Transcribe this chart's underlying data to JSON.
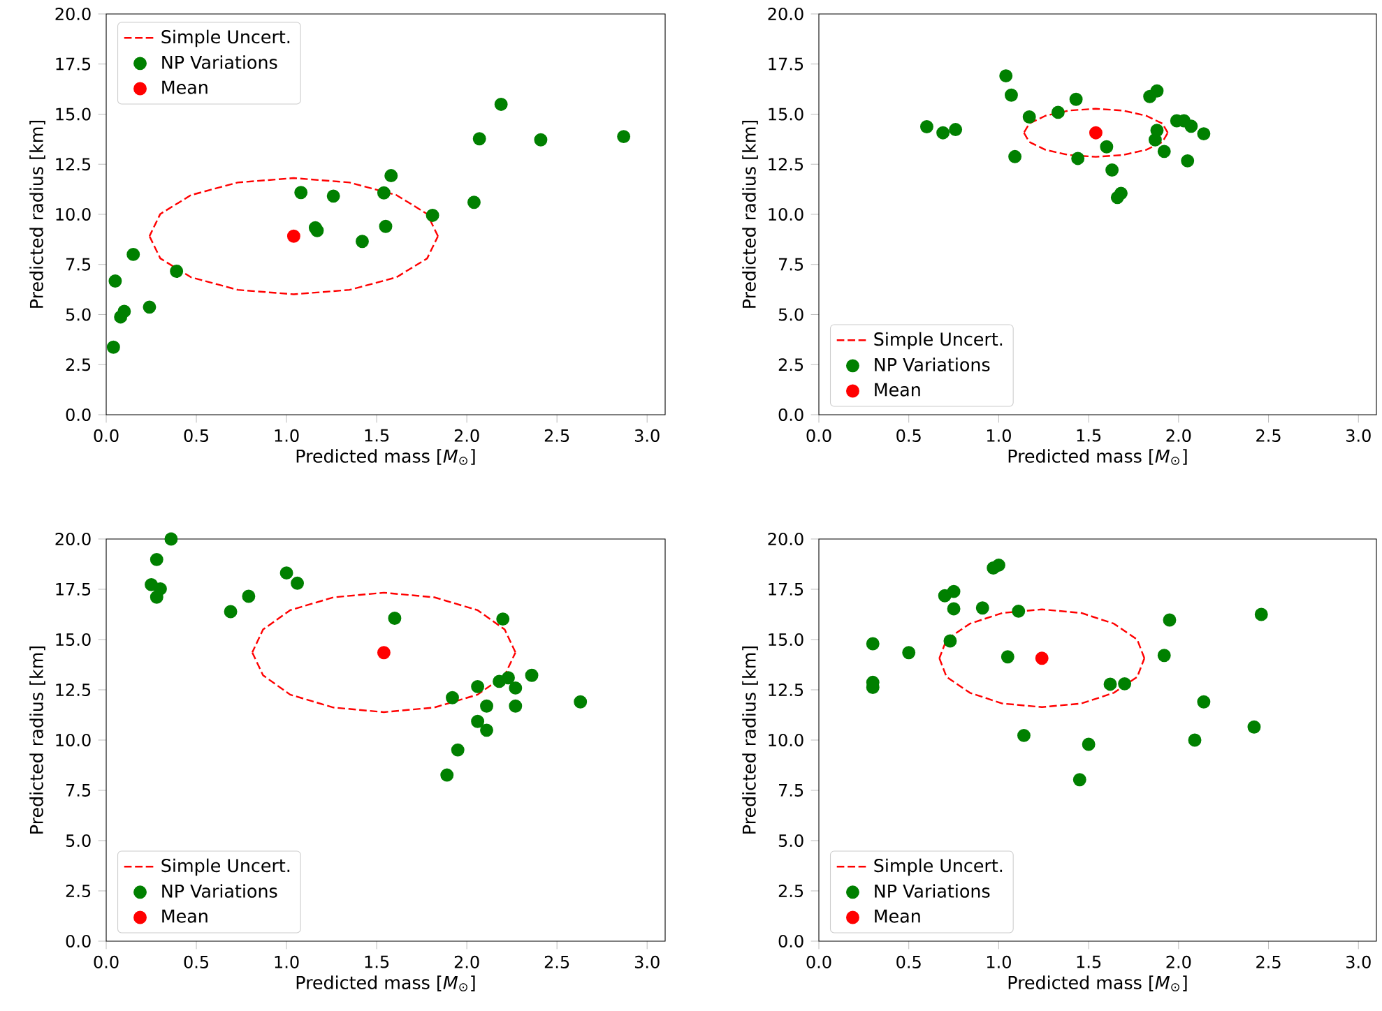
{
  "chart_data": [
    {
      "type": "scatter",
      "xlabel": "Predicted mass [*M*$_{⊙}$]",
      "ylabel": "Predicted radius [km]",
      "xlim": [
        0,
        3.1
      ],
      "ylim": [
        0,
        20
      ],
      "xticks": [
        {
          "value": 0,
          "label": "0.0"
        },
        0.5,
        {
          "value": 1,
          "label": "1.0"
        },
        1.5,
        {
          "value": 2,
          "label": "2.0"
        },
        2.5,
        {
          "value": 3,
          "label": "3.0"
        }
      ],
      "yticks": [
        {
          "value": 0,
          "label": "0.0"
        },
        2.5,
        {
          "value": 5,
          "label": "5.0"
        },
        7.5,
        {
          "value": 10,
          "label": "10.0"
        },
        12.5,
        {
          "value": 15,
          "label": "15.0"
        },
        17.5,
        {
          "value": 20,
          "label": "20.0"
        }
      ],
      "legend": "top left",
      "marker": "circle",
      "series": [
        {
          "name": "Simple Uncert.",
          "type": "line",
          "marker": "none",
          "line_style": "dashed",
          "color": "#ff0000",
          "x": [
            1.84,
            1.78,
            1.61,
            1.35,
            1.04,
            0.73,
            0.47,
            0.3,
            0.24,
            null,
            0.24,
            0.3,
            0.47,
            0.73,
            1.04,
            1.35,
            1.61,
            1.78,
            1.84
          ],
          "values": [
            8.91,
            10.02,
            10.96,
            11.59,
            11.81,
            11.59,
            10.96,
            10.02,
            8.91,
            null,
            8.91,
            7.8,
            6.86,
            6.23,
            6.01,
            6.23,
            6.86,
            7.8,
            8.91
          ]
        },
        {
          "name": "NP Variations",
          "color": "#008000",
          "x": [
            0.05,
            0.15,
            0.04,
            0.08,
            0.1,
            0.24,
            0.39,
            1.08,
            1.16,
            1.17,
            1.26,
            1.42,
            1.54,
            1.55,
            1.58,
            1.81,
            2.04,
            2.07,
            2.19,
            2.41,
            2.87
          ],
          "values": [
            6.67,
            8.0,
            3.37,
            4.88,
            5.16,
            5.37,
            7.16,
            11.09,
            9.33,
            9.19,
            10.91,
            8.65,
            11.07,
            9.4,
            11.93,
            9.95,
            10.6,
            13.77,
            15.49,
            13.72,
            13.88
          ]
        },
        {
          "name": "Mean",
          "color": "#ff0000",
          "x": [
            1.04
          ],
          "values": [
            8.91
          ]
        }
      ]
    },
    {
      "type": "scatter",
      "xlabel": "Predicted mass [*M*$_{⊙}$]",
      "ylabel": "Predicted radius [km]",
      "xlim": [
        0,
        3.1
      ],
      "ylim": [
        0,
        20
      ],
      "xticks": [
        {
          "value": 0,
          "label": "0.0"
        },
        0.5,
        {
          "value": 1,
          "label": "1.0"
        },
        1.5,
        {
          "value": 2,
          "label": "2.0"
        },
        2.5,
        {
          "value": 3,
          "label": "3.0"
        }
      ],
      "yticks": [
        {
          "value": 0,
          "label": "0.0"
        },
        2.5,
        {
          "value": 5,
          "label": "5.0"
        },
        7.5,
        {
          "value": 10,
          "label": "10.0"
        },
        12.5,
        {
          "value": 15,
          "label": "15.0"
        },
        17.5,
        {
          "value": 20,
          "label": "20.0"
        }
      ],
      "legend": "bottom left",
      "marker": "circle",
      "series": [
        {
          "name": "Simple Uncert.",
          "type": "line",
          "marker": "none",
          "line_style": "dashed",
          "color": "#ff0000",
          "x": [
            1.94,
            1.91,
            1.82,
            1.69,
            1.54,
            1.39,
            1.26,
            1.17,
            1.14,
            null,
            1.14,
            1.17,
            1.26,
            1.39,
            1.54,
            1.69,
            1.82,
            1.91,
            1.94
          ],
          "values": [
            14.07,
            14.53,
            14.92,
            15.18,
            15.27,
            15.18,
            14.92,
            14.53,
            14.07,
            null,
            14.07,
            13.61,
            13.22,
            12.96,
            12.87,
            12.96,
            13.22,
            13.61,
            14.07
          ]
        },
        {
          "name": "NP Variations",
          "color": "#008000",
          "x": [
            0.6,
            0.69,
            0.76,
            1.04,
            1.07,
            1.09,
            1.17,
            1.33,
            1.43,
            1.44,
            1.6,
            1.63,
            1.66,
            1.68,
            1.84,
            1.88,
            1.88,
            1.87,
            1.92,
            1.99,
            2.03,
            2.07,
            2.05,
            2.14
          ],
          "values": [
            14.37,
            14.07,
            14.23,
            16.91,
            15.95,
            12.88,
            14.86,
            15.09,
            15.74,
            12.79,
            13.37,
            12.21,
            10.84,
            11.05,
            15.88,
            16.16,
            14.19,
            13.72,
            13.14,
            14.67,
            14.67,
            14.4,
            12.67,
            14.02
          ]
        },
        {
          "name": "Mean",
          "color": "#ff0000",
          "x": [
            1.54
          ],
          "values": [
            14.07
          ]
        }
      ]
    },
    {
      "type": "scatter",
      "xlabel": "Predicted mass [*M*$_{⊙}$]",
      "ylabel": "Predicted radius [km]",
      "xlim": [
        0,
        3.1
      ],
      "ylim": [
        0,
        20
      ],
      "xticks": [
        {
          "value": 0,
          "label": "0.0"
        },
        0.5,
        {
          "value": 1,
          "label": "1.0"
        },
        1.5,
        {
          "value": 2,
          "label": "2.0"
        },
        2.5,
        {
          "value": 3,
          "label": "3.0"
        }
      ],
      "yticks": [
        {
          "value": 0,
          "label": "0.0"
        },
        2.5,
        {
          "value": 5,
          "label": "5.0"
        },
        7.5,
        {
          "value": 10,
          "label": "10.0"
        },
        12.5,
        {
          "value": 15,
          "label": "15.0"
        },
        17.5,
        {
          "value": 20,
          "label": "20.0"
        }
      ],
      "legend": "bottom left",
      "marker": "circle",
      "series": [
        {
          "name": "Simple Uncert.",
          "type": "line",
          "marker": "none",
          "line_style": "dashed",
          "color": "#ff0000",
          "x": [
            2.27,
            2.21,
            2.06,
            1.82,
            1.54,
            1.26,
            1.02,
            0.87,
            0.81,
            null,
            0.81,
            0.87,
            1.02,
            1.26,
            1.54,
            1.82,
            2.06,
            2.21,
            2.27
          ],
          "values": [
            14.36,
            15.5,
            16.46,
            17.1,
            17.33,
            17.1,
            16.46,
            15.5,
            14.36,
            null,
            14.36,
            13.22,
            12.26,
            11.62,
            11.39,
            11.62,
            12.26,
            13.22,
            14.36
          ]
        },
        {
          "name": "NP Variations",
          "color": "#008000",
          "x": [
            0.36,
            0.28,
            0.25,
            0.3,
            0.28,
            0.69,
            0.79,
            1.0,
            1.06,
            1.6,
            2.2,
            1.92,
            2.06,
            2.11,
            2.06,
            2.11,
            1.95,
            1.89,
            2.18,
            2.23,
            2.27,
            2.27,
            2.36,
            2.63
          ],
          "values": [
            20.0,
            18.98,
            17.73,
            17.52,
            17.11,
            16.39,
            17.15,
            18.31,
            17.8,
            16.06,
            16.02,
            12.11,
            12.66,
            11.69,
            10.93,
            10.49,
            9.51,
            8.26,
            12.92,
            13.1,
            12.59,
            11.69,
            13.22,
            11.9
          ]
        },
        {
          "name": "Mean",
          "color": "#ff0000",
          "x": [
            1.54
          ],
          "values": [
            14.35
          ]
        }
      ]
    },
    {
      "type": "scatter",
      "xlabel": "Predicted mass [*M*$_{⊙}$]",
      "ylabel": "Predicted radius [km]",
      "xlim": [
        0,
        3.1
      ],
      "ylim": [
        0,
        20
      ],
      "xticks": [
        {
          "value": 0,
          "label": "0.0"
        },
        0.5,
        {
          "value": 1,
          "label": "1.0"
        },
        1.5,
        {
          "value": 2,
          "label": "2.0"
        },
        2.5,
        {
          "value": 3,
          "label": "3.0"
        }
      ],
      "yticks": [
        {
          "value": 0,
          "label": "0.0"
        },
        2.5,
        {
          "value": 5,
          "label": "5.0"
        },
        7.5,
        {
          "value": 10,
          "label": "10.0"
        },
        12.5,
        {
          "value": 15,
          "label": "15.0"
        },
        17.5,
        {
          "value": 20,
          "label": "20.0"
        }
      ],
      "legend": "bottom left",
      "marker": "circle",
      "series": [
        {
          "name": "Simple Uncert.",
          "type": "line",
          "marker": "none",
          "line_style": "dashed",
          "color": "#ff0000",
          "x": [
            1.81,
            1.77,
            1.64,
            1.46,
            1.24,
            1.02,
            0.84,
            0.71,
            0.67,
            null,
            0.67,
            0.71,
            0.84,
            1.02,
            1.24,
            1.46,
            1.64,
            1.77,
            1.81
          ],
          "values": [
            14.07,
            15.0,
            15.79,
            16.32,
            16.5,
            16.32,
            15.79,
            15.0,
            14.07,
            null,
            14.07,
            13.14,
            12.35,
            11.82,
            11.64,
            11.82,
            12.35,
            13.14,
            14.07
          ]
        },
        {
          "name": "NP Variations",
          "color": "#008000",
          "x": [
            0.3,
            0.3,
            0.3,
            0.5,
            0.7,
            0.75,
            0.75,
            0.73,
            0.91,
            0.97,
            1.0,
            1.11,
            1.05,
            1.14,
            1.5,
            1.45,
            1.62,
            1.7,
            1.92,
            1.95,
            2.14,
            2.09,
            2.42,
            2.46
          ],
          "values": [
            14.79,
            12.87,
            12.62,
            14.35,
            17.18,
            17.39,
            16.53,
            14.93,
            16.57,
            18.56,
            18.7,
            16.41,
            14.14,
            10.23,
            9.79,
            8.03,
            12.78,
            12.8,
            14.21,
            15.97,
            11.9,
            10.0,
            10.65,
            16.25
          ]
        },
        {
          "name": "Mean",
          "color": "#ff0000",
          "x": [
            1.24
          ],
          "values": [
            14.07
          ]
        }
      ]
    }
  ]
}
